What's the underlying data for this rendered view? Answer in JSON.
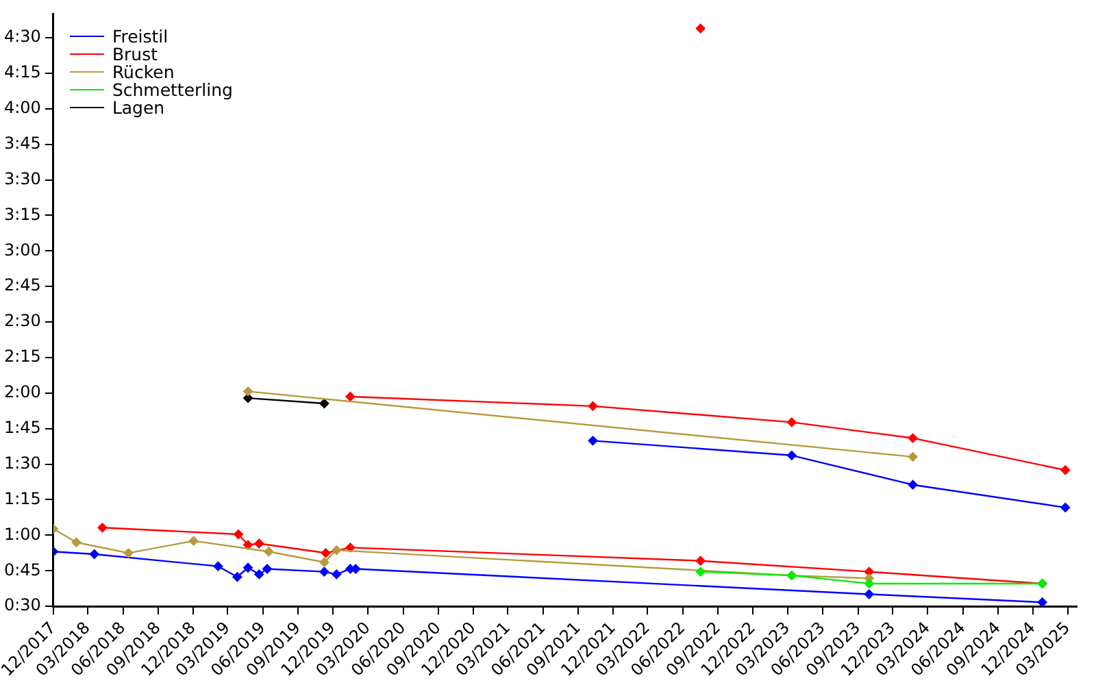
{
  "chart_data": {
    "type": "line",
    "marker": "diamond",
    "line_style": "solid",
    "grid": false,
    "legend": "top left",
    "xlim": [
      "2017-12-01",
      "2025-03-25"
    ],
    "xticks": [
      {
        "value": "2017-12",
        "label": "12/2017"
      },
      {
        "value": "2018-03",
        "label": "03/2018"
      },
      {
        "value": "2018-06",
        "label": "06/2018"
      },
      {
        "value": "2018-09",
        "label": "09/2018"
      },
      {
        "value": "2018-12",
        "label": "12/2018"
      },
      {
        "value": "2019-03",
        "label": "03/2019"
      },
      {
        "value": "2019-06",
        "label": "06/2019"
      },
      {
        "value": "2019-09",
        "label": "09/2019"
      },
      {
        "value": "2019-12",
        "label": "12/2019"
      },
      {
        "value": "2020-03",
        "label": "03/2020"
      },
      {
        "value": "2020-06",
        "label": "06/2020"
      },
      {
        "value": "2020-09",
        "label": "09/2020"
      },
      {
        "value": "2020-12",
        "label": "12/2020"
      },
      {
        "value": "2021-03",
        "label": "03/2021"
      },
      {
        "value": "2021-06",
        "label": "06/2021"
      },
      {
        "value": "2021-09",
        "label": "09/2021"
      },
      {
        "value": "2021-12",
        "label": "12/2021"
      },
      {
        "value": "2022-03",
        "label": "03/2022"
      },
      {
        "value": "2022-06",
        "label": "06/2022"
      },
      {
        "value": "2022-09",
        "label": "09/2022"
      },
      {
        "value": "2022-12",
        "label": "12/2022"
      },
      {
        "value": "2023-03",
        "label": "03/2023"
      },
      {
        "value": "2023-06",
        "label": "06/2023"
      },
      {
        "value": "2023-09",
        "label": "09/2023"
      },
      {
        "value": "2023-12",
        "label": "12/2023"
      },
      {
        "value": "2024-03",
        "label": "03/2024"
      },
      {
        "value": "2024-06",
        "label": "06/2024"
      },
      {
        "value": "2024-09",
        "label": "09/2024"
      },
      {
        "value": "2024-12",
        "label": "12/2024"
      },
      {
        "value": "2025-03",
        "label": "03/2025"
      }
    ],
    "ylim": [
      30,
      280
    ],
    "yticks": [
      {
        "value": 30,
        "label": "0:30"
      },
      {
        "value": 45,
        "label": "0:45"
      },
      {
        "value": 60,
        "label": "1:00"
      },
      {
        "value": 75,
        "label": "1:15"
      },
      {
        "value": 90,
        "label": "1:30"
      },
      {
        "value": 105,
        "label": "1:45"
      },
      {
        "value": 120,
        "label": "2:00"
      },
      {
        "value": 135,
        "label": "2:15"
      },
      {
        "value": 150,
        "label": "2:30"
      },
      {
        "value": 165,
        "label": "2:45"
      },
      {
        "value": 180,
        "label": "3:00"
      },
      {
        "value": 195,
        "label": "3:15"
      },
      {
        "value": 210,
        "label": "3:30"
      },
      {
        "value": 225,
        "label": "3:45"
      },
      {
        "value": 240,
        "label": "4:00"
      },
      {
        "value": 255,
        "label": "4:15"
      },
      {
        "value": 270,
        "label": "4:30"
      }
    ],
    "series": [
      {
        "name": "Freistil",
        "color": "#0000ff",
        "x": [
          "2017-12-01",
          "2018-03-18",
          "2019-02-04",
          "2019-03-26",
          "2019-04-23",
          "2019-05-22",
          "2019-06-12",
          "2019-11-08",
          "2019-12-10",
          "2020-01-15",
          "2020-01-29",
          "2023-09-30",
          "2024-12-25"
        ],
        "values": [
          53.1,
          52.0,
          46.9,
          42.4,
          46.3,
          43.5,
          45.8,
          44.6,
          43.5,
          45.8,
          45.8,
          35.1,
          31.7
        ]
      },
      {
        "name": "Brust",
        "color": "#ff0000",
        "x": [
          "2018-04-08",
          "2019-03-29",
          "2019-04-23",
          "2019-05-22",
          "2019-11-12",
          "2020-01-15",
          "2022-07-17",
          "2023-09-30",
          "2024-12-25"
        ],
        "values": [
          63.2,
          60.4,
          55.9,
          56.5,
          52.5,
          54.8,
          49.2,
          44.6,
          39.6
        ]
      },
      {
        "name": "Rücken",
        "color": "#b89a3c",
        "x": [
          "2017-12-01",
          "2018-01-30",
          "2018-06-15",
          "2018-12-02",
          "2019-06-16",
          "2019-11-08",
          "2019-12-10",
          "2023-03-12",
          "2023-09-30"
        ],
        "values": [
          62.7,
          57.0,
          52.5,
          57.6,
          53.1,
          48.6,
          53.7,
          43.0,
          41.8
        ]
      },
      {
        "name": "Schmetterling",
        "color": "#00ee00",
        "x": [
          "2022-07-17",
          "2023-03-12",
          "2023-09-30",
          "2024-12-25"
        ],
        "values": [
          44.6,
          43.0,
          39.6,
          39.6
        ]
      },
      {
        "name": "Lagen",
        "color": "#000000",
        "x": [
          "2019-04-23",
          "2019-11-08"
        ],
        "values": [
          117.9,
          115.6
        ]
      },
      {
        "color": "#0000ff",
        "x": [
          "2021-10-09",
          "2023-03-12",
          "2024-01-22",
          "2025-02-23"
        ],
        "values": [
          99.9,
          93.7,
          81.3,
          71.7
        ]
      },
      {
        "color": "#ff0000",
        "x": [
          "2020-01-15",
          "2021-10-09",
          "2023-03-12",
          "2024-01-22",
          "2025-02-23"
        ],
        "values": [
          118.5,
          114.5,
          107.7,
          101.0,
          87.5
        ]
      },
      {
        "color": "#b89a3c",
        "x": [
          "2019-04-23",
          "2024-01-22"
        ],
        "values": [
          120.7,
          93.1
        ]
      },
      {
        "color": "#ff0000",
        "x": [
          "2022-07-17"
        ],
        "values": [
          273.9
        ]
      }
    ]
  }
}
